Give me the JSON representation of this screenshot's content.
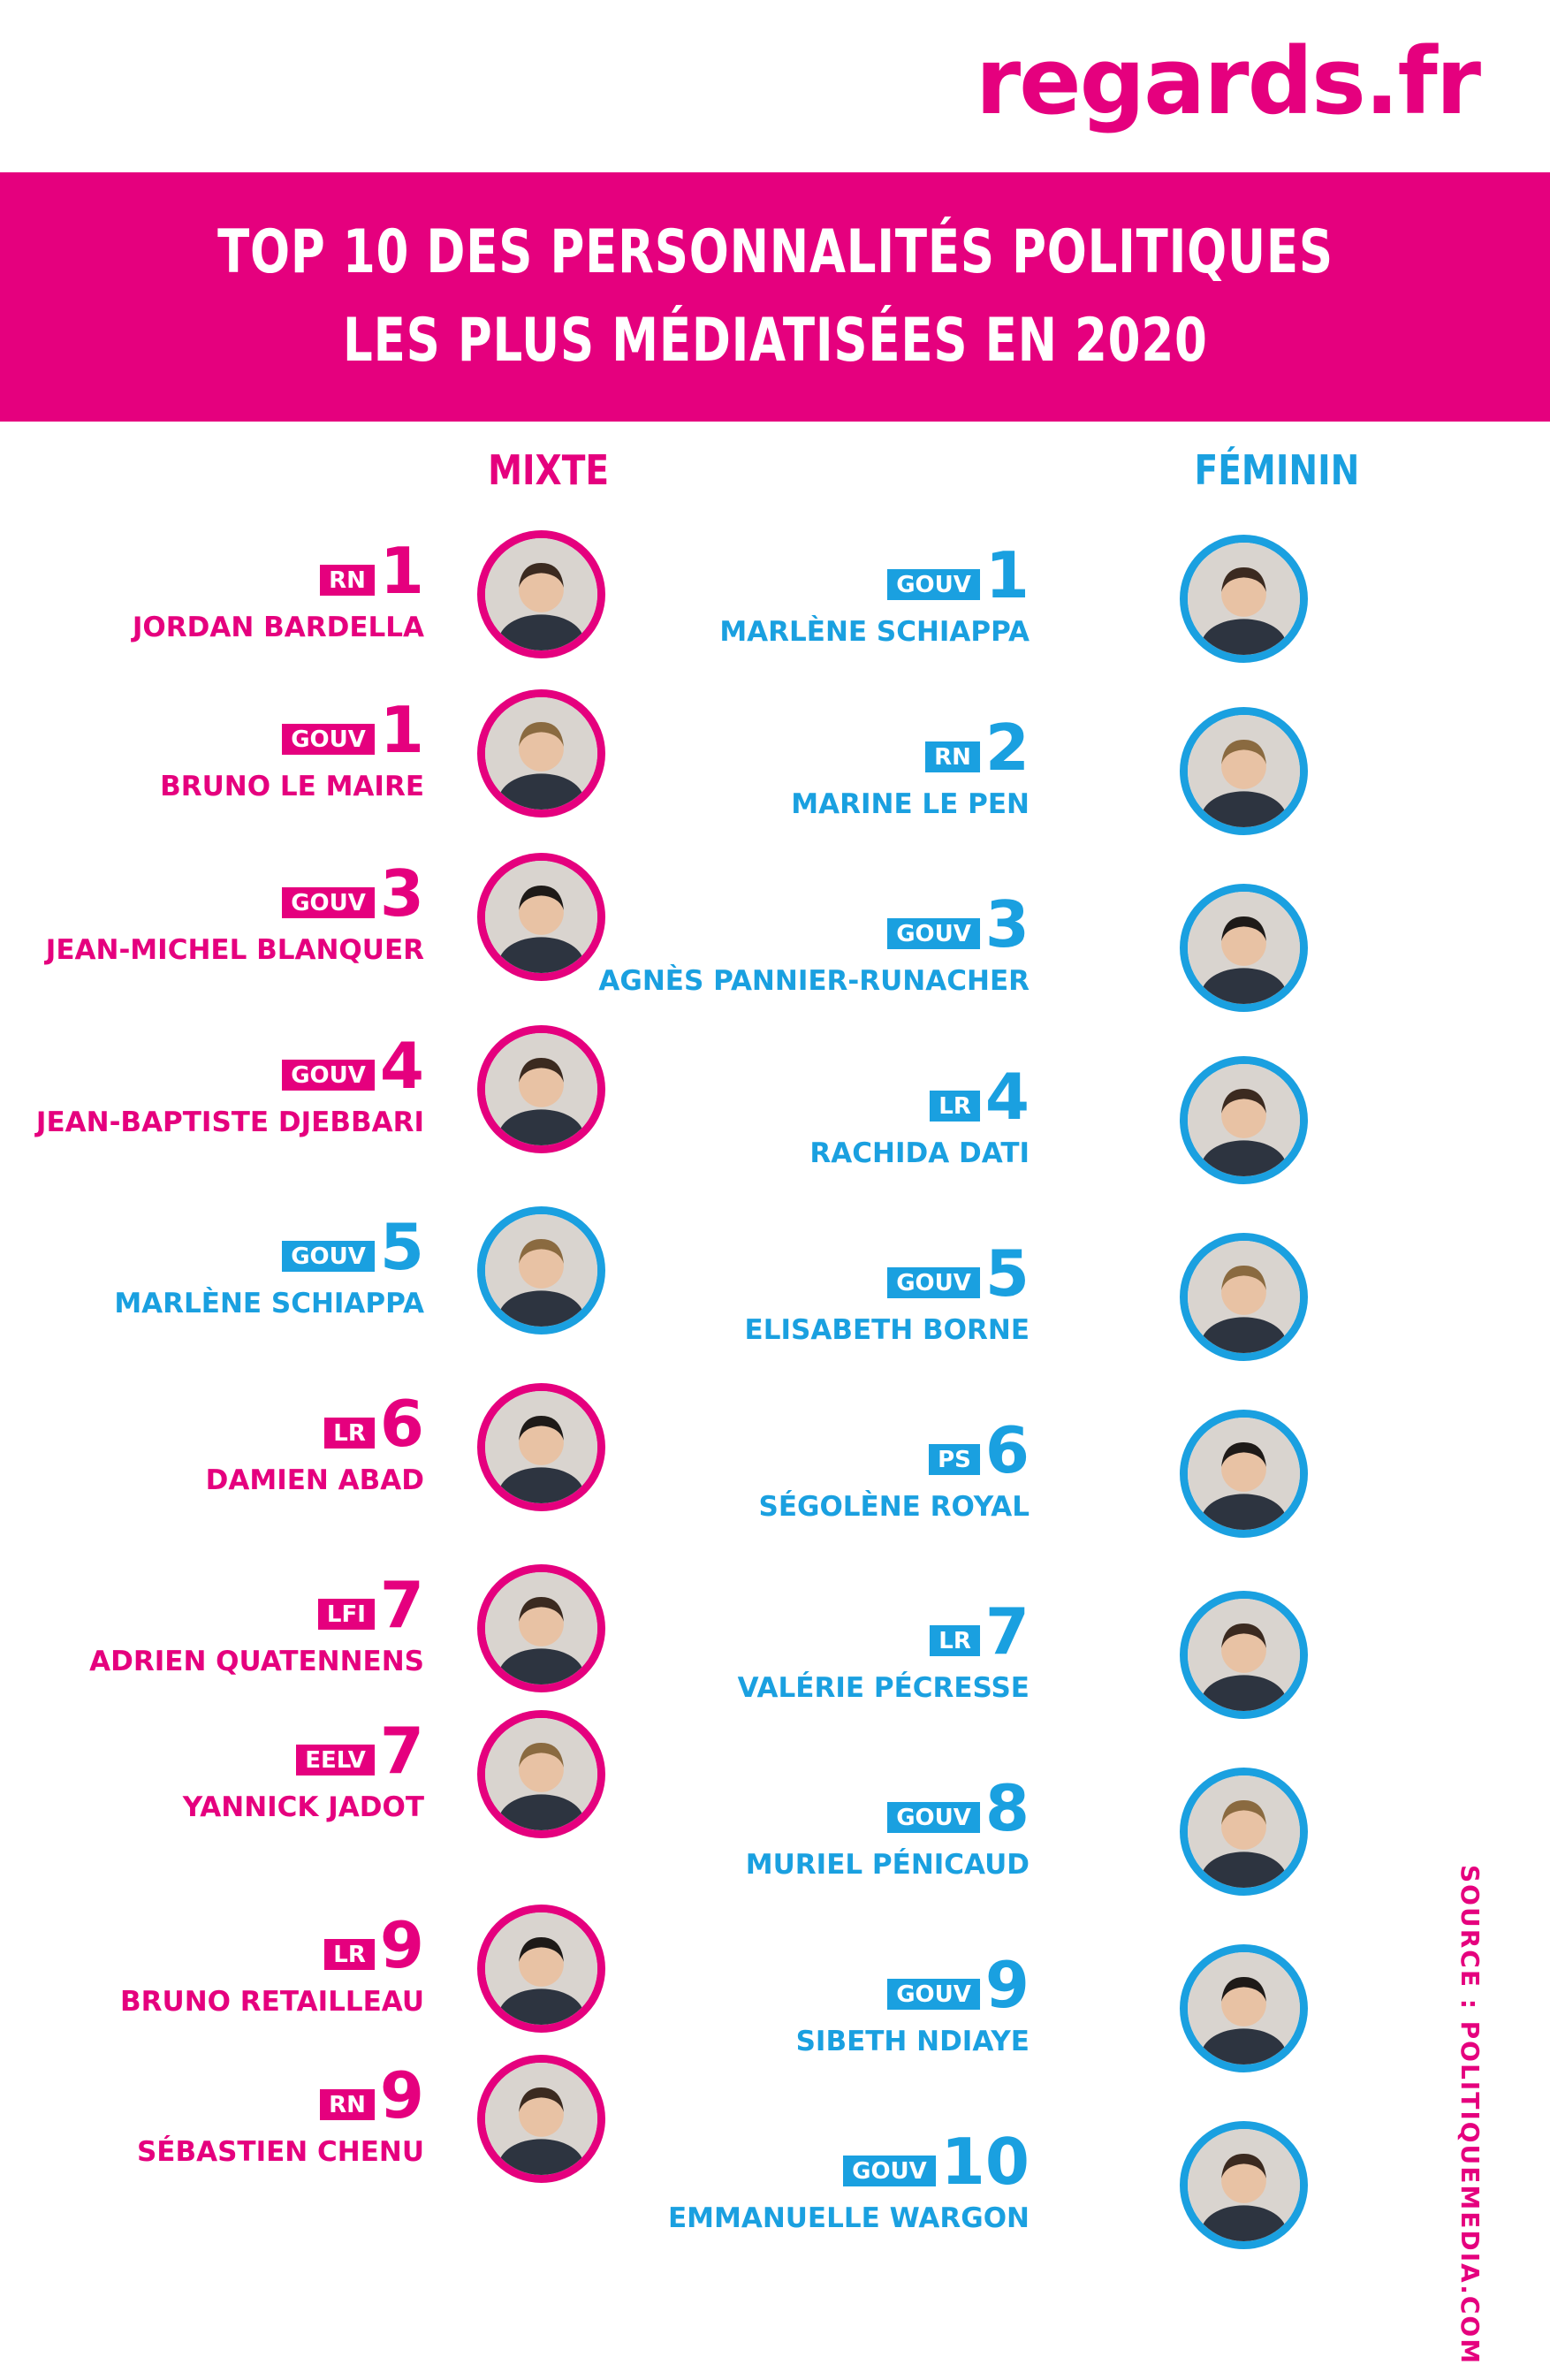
{
  "logo": "regards.fr",
  "title": {
    "line1": "TOP 10 DES PERSONNALITÉS POLITIQUES",
    "line2": "LES PLUS MÉDIATISÉES EN 2020"
  },
  "columns": {
    "mixte": "MIXTE",
    "feminin": "FÉMININ"
  },
  "colors": {
    "pink": "#e5007e",
    "blue": "#1aa0e0"
  },
  "mixte": [
    {
      "rank": "1",
      "party": "RN",
      "name": "JORDAN BARDELLA",
      "color": "pink",
      "photo": "portrait-icon"
    },
    {
      "rank": "1",
      "party": "GOUV",
      "name": "BRUNO LE MAIRE",
      "color": "pink",
      "photo": "portrait-icon"
    },
    {
      "rank": "3",
      "party": "GOUV",
      "name": "JEAN-MICHEL BLANQUER",
      "color": "pink",
      "photo": "portrait-icon"
    },
    {
      "rank": "4",
      "party": "GOUV",
      "name": "JEAN-BAPTISTE DJEBBARI",
      "color": "pink",
      "photo": "portrait-icon"
    },
    {
      "rank": "5",
      "party": "GOUV",
      "name": "MARLÈNE SCHIAPPA",
      "color": "blue",
      "photo": "portrait-icon"
    },
    {
      "rank": "6",
      "party": "LR",
      "name": "DAMIEN ABAD",
      "color": "pink",
      "photo": "portrait-icon"
    },
    {
      "rank": "7",
      "party": "LFI",
      "name": "ADRIEN QUATENNENS",
      "color": "pink",
      "photo": "portrait-icon"
    },
    {
      "rank": "7",
      "party": "EELV",
      "name": "YANNICK JADOT",
      "color": "pink",
      "photo": "portrait-icon"
    },
    {
      "rank": "9",
      "party": "LR",
      "name": "BRUNO RETAILLEAU",
      "color": "pink",
      "photo": "portrait-icon"
    },
    {
      "rank": "9",
      "party": "RN",
      "name": "SÉBASTIEN CHENU",
      "color": "pink",
      "photo": "portrait-icon"
    }
  ],
  "feminin": [
    {
      "rank": "1",
      "party": "GOUV",
      "name": "MARLÈNE SCHIAPPA",
      "color": "blue",
      "photo": "portrait-icon"
    },
    {
      "rank": "2",
      "party": "RN",
      "name": "MARINE LE PEN",
      "color": "blue",
      "photo": "portrait-icon"
    },
    {
      "rank": "3",
      "party": "GOUV",
      "name": "AGNÈS PANNIER-RUNACHER",
      "color": "blue",
      "photo": "portrait-icon"
    },
    {
      "rank": "4",
      "party": "LR",
      "name": "RACHIDA DATI",
      "color": "blue",
      "photo": "portrait-icon"
    },
    {
      "rank": "5",
      "party": "GOUV",
      "name": "ELISABETH BORNE",
      "color": "blue",
      "photo": "portrait-icon"
    },
    {
      "rank": "6",
      "party": "PS",
      "name": "SÉGOLÈNE ROYAL",
      "color": "blue",
      "photo": "portrait-icon"
    },
    {
      "rank": "7",
      "party": "LR",
      "name": "VALÉRIE PÉCRESSE",
      "color": "blue",
      "photo": "portrait-icon"
    },
    {
      "rank": "8",
      "party": "GOUV",
      "name": "MURIEL PÉNICAUD",
      "color": "blue",
      "photo": "portrait-icon"
    },
    {
      "rank": "9",
      "party": "GOUV",
      "name": "SIBETH NDIAYE",
      "color": "blue",
      "photo": "portrait-icon"
    },
    {
      "rank": "10",
      "party": "GOUV",
      "name": "EMMANUELLE WARGON",
      "color": "blue",
      "photo": "portrait-icon"
    }
  ],
  "source": "SOURCE : POLITIQUEMEDIA.COM"
}
